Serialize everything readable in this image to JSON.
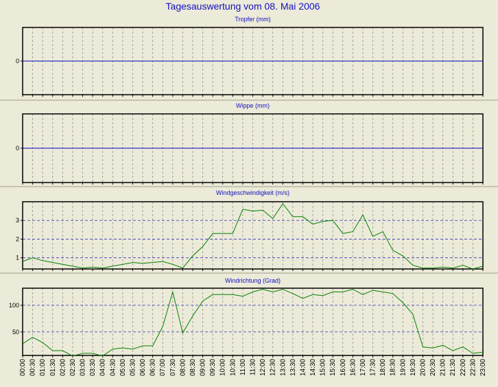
{
  "title": "Tagesauswertung vom 08. Mai 2006",
  "chart_data": [
    {
      "type": "line",
      "title": "Tropfer (mm)",
      "values": [
        0,
        0,
        0,
        0,
        0,
        0,
        0,
        0,
        0,
        0,
        0,
        0,
        0,
        0,
        0,
        0,
        0,
        0,
        0,
        0,
        0,
        0,
        0,
        0,
        0,
        0,
        0,
        0,
        0,
        0,
        0,
        0,
        0,
        0,
        0,
        0,
        0,
        0,
        0,
        0,
        0,
        0,
        0,
        0,
        0,
        0,
        0
      ],
      "color": "#0000cc",
      "ylim": [
        -1,
        1
      ],
      "yticks": [
        0
      ],
      "grid": true
    },
    {
      "type": "line",
      "title": "Wippe (mm)",
      "values": [
        0,
        0,
        0,
        0,
        0,
        0,
        0,
        0,
        0,
        0,
        0,
        0,
        0,
        0,
        0,
        0,
        0,
        0,
        0,
        0,
        0,
        0,
        0,
        0,
        0,
        0,
        0,
        0,
        0,
        0,
        0,
        0,
        0,
        0,
        0,
        0,
        0,
        0,
        0,
        0,
        0,
        0,
        0,
        0,
        0,
        0,
        0
      ],
      "color": "#0000cc",
      "ylim": [
        -1,
        1
      ],
      "yticks": [
        0
      ],
      "grid": true
    },
    {
      "type": "line",
      "title": "Windgeschwindigkeit (m/s)",
      "values": [
        0.8,
        1.0,
        0.85,
        0.75,
        0.65,
        0.55,
        0.45,
        0.5,
        0.45,
        0.55,
        0.65,
        0.75,
        0.7,
        0.75,
        0.8,
        0.65,
        0.45,
        1.1,
        1.6,
        2.3,
        2.3,
        2.3,
        3.6,
        3.5,
        3.55,
        3.1,
        3.9,
        3.2,
        3.2,
        2.8,
        2.95,
        3.0,
        2.3,
        2.4,
        3.3,
        2.15,
        2.4,
        1.4,
        1.1,
        0.6,
        0.45,
        0.45,
        0.5,
        0.45,
        0.6,
        0.4,
        0.55
      ],
      "color": "#008000",
      "ylim": [
        0.4,
        4
      ],
      "yticks": [
        1,
        2,
        3
      ],
      "grid": true
    },
    {
      "type": "line",
      "title": "Windrichtung (Grad)",
      "categories": [
        "00:00",
        "00:30",
        "01:00",
        "01:30",
        "02:00",
        "02:30",
        "03:00",
        "03:30",
        "04:00",
        "04:30",
        "05:00",
        "05:30",
        "06:00",
        "06:30",
        "07:00",
        "07:30",
        "08:00",
        "08:30",
        "09:00",
        "09:30",
        "10:00",
        "10:30",
        "11:00",
        "11:30",
        "12:00",
        "12:30",
        "13:00",
        "13:30",
        "14:00",
        "14:30",
        "15:00",
        "15:30",
        "16:00",
        "16:30",
        "17:00",
        "17:30",
        "18:00",
        "18:30",
        "19:00",
        "19:30",
        "20:00",
        "20:30",
        "21:00",
        "21:30",
        "22:00",
        "22:30",
        "23:00"
      ],
      "values": [
        28,
        40,
        30,
        15,
        15,
        5,
        10,
        10,
        5,
        18,
        20,
        18,
        24,
        24,
        60,
        125,
        48,
        80,
        108,
        120,
        120,
        120,
        117,
        125,
        130,
        125,
        130,
        122,
        113,
        120,
        118,
        125,
        125,
        130,
        120,
        128,
        125,
        122,
        105,
        83,
        22,
        20,
        25,
        15,
        22,
        10,
        12
      ],
      "color": "#008000",
      "ylim": [
        6,
        132
      ],
      "yticks": [
        50,
        100
      ],
      "grid": true
    }
  ]
}
